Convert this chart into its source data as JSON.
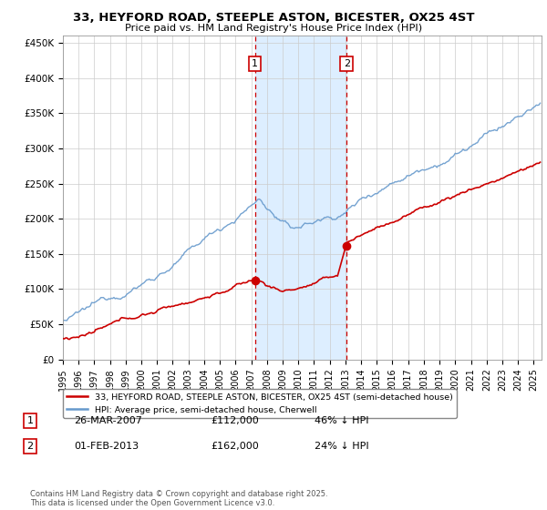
{
  "title": "33, HEYFORD ROAD, STEEPLE ASTON, BICESTER, OX25 4ST",
  "subtitle": "Price paid vs. HM Land Registry's House Price Index (HPI)",
  "ylim": [
    0,
    460000
  ],
  "yticks": [
    0,
    50000,
    100000,
    150000,
    200000,
    250000,
    300000,
    350000,
    400000,
    450000
  ],
  "ytick_labels": [
    "£0",
    "£50K",
    "£100K",
    "£150K",
    "£200K",
    "£250K",
    "£300K",
    "£350K",
    "£400K",
    "£450K"
  ],
  "sale1_date_num": 2007.23,
  "sale1_price": 112000,
  "sale2_date_num": 2013.08,
  "sale2_price": 162000,
  "shade_color": "#ddeeff",
  "hpi_color": "#6699cc",
  "price_color": "#cc0000",
  "vline_color": "#cc0000",
  "legend_label_price": "33, HEYFORD ROAD, STEEPLE ASTON, BICESTER, OX25 4ST (semi-detached house)",
  "legend_label_hpi": "HPI: Average price, semi-detached house, Cherwell",
  "table_row1": [
    "1",
    "26-MAR-2007",
    "£112,000",
    "46% ↓ HPI"
  ],
  "table_row2": [
    "2",
    "01-FEB-2013",
    "£162,000",
    "24% ↓ HPI"
  ],
  "footnote": "Contains HM Land Registry data © Crown copyright and database right 2025.\nThis data is licensed under the Open Government Licence v3.0.",
  "background_color": "#ffffff",
  "grid_color": "#cccccc"
}
